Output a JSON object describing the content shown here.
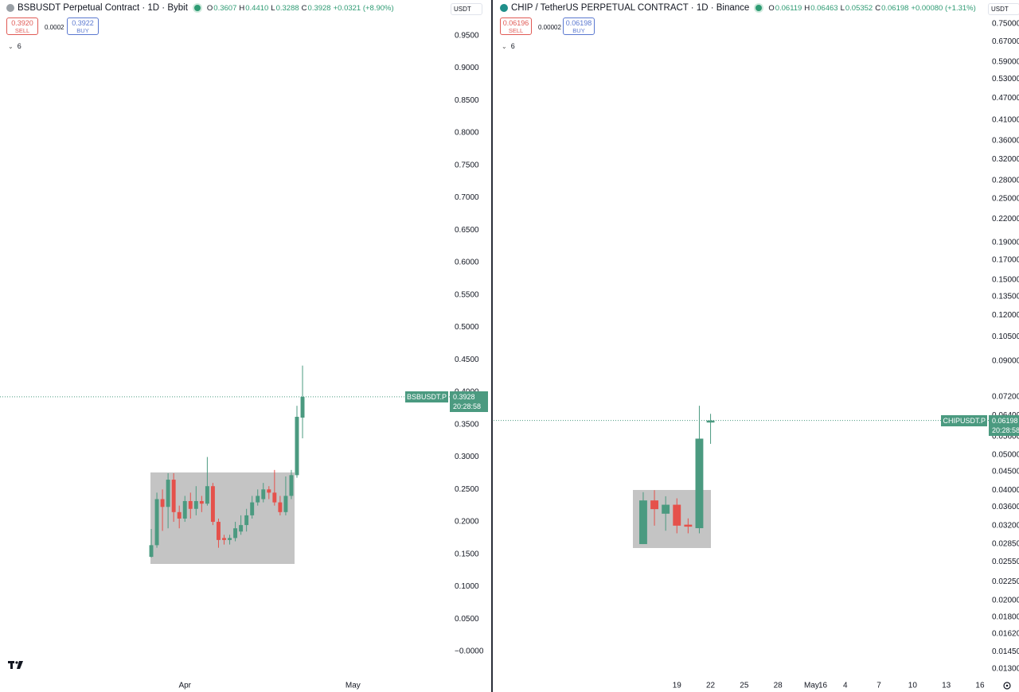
{
  "chart_data": [
    {
      "type": "candlestick",
      "title": "BSBUSDT Perpetual Contract · 1D · Bybit",
      "ohlc_labels": [
        "O",
        "H",
        "L",
        "C"
      ],
      "ohlc_values": [
        "0.3607",
        "0.4410",
        "0.3288",
        "0.3928"
      ],
      "change": "+0.0321 (+8.90%)",
      "sell_price": "0.3920",
      "sell_label": "SELL",
      "spread": "0.0002",
      "buy_price": "0.3922",
      "buy_label": "BUY",
      "indicators": "6",
      "currency": "USDT",
      "symbol_tag": "BSBUSDT.P",
      "last_price": "0.3928",
      "countdown": "20:28:58",
      "up_color": "#4b9a80",
      "down_color": "#e5514b",
      "log_scale": false,
      "xlim": [
        -27,
        53
      ],
      "xticks": [
        {
          "value": 6,
          "label": "Apr"
        },
        {
          "value": 36,
          "label": "May"
        }
      ],
      "ylim": [
        -0.038,
        1.005
      ],
      "yticks": [
        {
          "value": 0.95,
          "label": "0.9500"
        },
        {
          "value": 0.9,
          "label": "0.9000"
        },
        {
          "value": 0.85,
          "label": "0.8500"
        },
        {
          "value": 0.8,
          "label": "0.8000"
        },
        {
          "value": 0.75,
          "label": "0.7500"
        },
        {
          "value": 0.7,
          "label": "0.7000"
        },
        {
          "value": 0.65,
          "label": "0.6500"
        },
        {
          "value": 0.6,
          "label": "0.6000"
        },
        {
          "value": 0.55,
          "label": "0.5500"
        },
        {
          "value": 0.5,
          "label": "0.5000"
        },
        {
          "value": 0.45,
          "label": "0.4500"
        },
        {
          "value": 0.4,
          "label": "0.4000"
        },
        {
          "value": 0.35,
          "label": "0.3500"
        },
        {
          "value": 0.3,
          "label": "0.3000"
        },
        {
          "value": 0.25,
          "label": "0.2500"
        },
        {
          "value": 0.2,
          "label": "0.2000"
        },
        {
          "value": 0.15,
          "label": "0.1500"
        },
        {
          "value": 0.1,
          "label": "0.1000"
        },
        {
          "value": 0.05,
          "label": "0.0500"
        },
        {
          "value": 0,
          "label": "−0.0000"
        }
      ],
      "open": [
        0.146,
        0.164,
        0.235,
        0.223,
        0.265,
        0.215,
        0.205,
        0.232,
        0.22,
        0.232,
        0.228,
        0.255,
        0.2,
        0.175,
        0.172,
        0.175,
        0.185,
        0.195,
        0.21,
        0.23,
        0.235,
        0.25,
        0.245,
        0.23,
        0.215,
        0.24,
        0.272,
        0.3607
      ],
      "high": [
        0.189,
        0.245,
        0.25,
        0.275,
        0.275,
        0.225,
        0.24,
        0.245,
        0.255,
        0.24,
        0.3,
        0.26,
        0.205,
        0.18,
        0.18,
        0.2,
        0.21,
        0.22,
        0.24,
        0.25,
        0.26,
        0.255,
        0.28,
        0.24,
        0.27,
        0.28,
        0.379,
        0.441
      ],
      "low": [
        0.145,
        0.16,
        0.186,
        0.19,
        0.2,
        0.19,
        0.2,
        0.205,
        0.21,
        0.215,
        0.225,
        0.195,
        0.16,
        0.165,
        0.165,
        0.17,
        0.18,
        0.185,
        0.205,
        0.225,
        0.23,
        0.235,
        0.225,
        0.21,
        0.21,
        0.235,
        0.268,
        0.3288
      ],
      "close": [
        0.164,
        0.235,
        0.223,
        0.265,
        0.215,
        0.205,
        0.232,
        0.22,
        0.232,
        0.228,
        0.255,
        0.2,
        0.172,
        0.172,
        0.175,
        0.19,
        0.195,
        0.21,
        0.23,
        0.24,
        0.25,
        0.245,
        0.23,
        0.215,
        0.24,
        0.272,
        0.362,
        0.3928
      ]
    },
    {
      "type": "candlestick",
      "title": "CHIP / TetherUS PERPETUAL CONTRACT · 1D · Binance",
      "ohlc_labels": [
        "O",
        "H",
        "L",
        "C"
      ],
      "ohlc_values": [
        "0.06119",
        "0.06463",
        "0.05352",
        "0.06198"
      ],
      "change": "+0.00080 (+1.31%)",
      "sell_price": "0.06196",
      "sell_label": "SELL",
      "spread": "0.00002",
      "buy_price": "0.06198",
      "buy_label": "BUY",
      "indicators": "6",
      "currency": "USDT",
      "symbol_tag": "CHIPUSDT.P",
      "last_price": "0.06198",
      "countdown": "20:28:58",
      "up_color": "#4b9a80",
      "down_color": "#e5514b",
      "log_scale": true,
      "xlim": [
        -13.33,
        30.64
      ],
      "xticks": [
        16,
        {
          "value": 3,
          "label": "19"
        },
        {
          "value": 6,
          "label": "22"
        },
        {
          "value": 9,
          "label": "25"
        },
        {
          "value": 12,
          "label": "28"
        },
        {
          "value": 15,
          "label": "May"
        },
        {
          "value": 18,
          "label": "4"
        },
        {
          "value": 21,
          "label": "7"
        },
        {
          "value": 24,
          "label": "10"
        },
        {
          "value": 27,
          "label": "13"
        },
        {
          "value": 30,
          "label": "16"
        }
      ],
      "ylim": [
        0.01243,
        0.8714
      ],
      "yticks": [
        {
          "value": 0.75,
          "label": "0.75000"
        },
        {
          "value": 0.67,
          "label": "0.67000"
        },
        {
          "value": 0.59,
          "label": "0.59000"
        },
        {
          "value": 0.53,
          "label": "0.53000"
        },
        {
          "value": 0.47,
          "label": "0.47000"
        },
        {
          "value": 0.41,
          "label": "0.41000"
        },
        {
          "value": 0.36,
          "label": "0.36000"
        },
        {
          "value": 0.32,
          "label": "0.32000"
        },
        {
          "value": 0.28,
          "label": "0.28000"
        },
        {
          "value": 0.25,
          "label": "0.25000"
        },
        {
          "value": 0.22,
          "label": "0.22000"
        },
        {
          "value": 0.19,
          "label": "0.19000"
        },
        {
          "value": 0.17,
          "label": "0.17000"
        },
        {
          "value": 0.15,
          "label": "0.15000"
        },
        {
          "value": 0.135,
          "label": "0.13500"
        },
        {
          "value": 0.12,
          "label": "0.12000"
        },
        {
          "value": 0.105,
          "label": "0.10500"
        },
        {
          "value": 0.09,
          "label": "0.09000"
        },
        {
          "value": 0.072,
          "label": "0.07200"
        },
        {
          "value": 0.064,
          "label": "0.06400"
        },
        {
          "value": 0.056,
          "label": "0.05600"
        },
        {
          "value": 0.05,
          "label": "0.05000"
        },
        {
          "value": 0.045,
          "label": "0.04500"
        },
        {
          "value": 0.04,
          "label": "0.04000"
        },
        {
          "value": 0.036,
          "label": "0.03600"
        },
        {
          "value": 0.032,
          "label": "0.03200"
        },
        {
          "value": 0.0285,
          "label": "0.02850"
        },
        {
          "value": 0.0255,
          "label": "0.02550"
        },
        {
          "value": 0.0225,
          "label": "0.02250"
        },
        {
          "value": 0.02,
          "label": "0.02000"
        },
        {
          "value": 0.018,
          "label": "0.01800"
        },
        {
          "value": 0.0162,
          "label": "0.01620"
        },
        {
          "value": 0.0145,
          "label": "0.01450"
        },
        {
          "value": 0.013,
          "label": "0.01300"
        }
      ],
      "open": [
        0.0285,
        0.0375,
        0.0345,
        0.0365,
        0.0322,
        0.0315,
        0.06119
      ],
      "high": [
        0.0395,
        0.04,
        0.0385,
        0.038,
        0.0335,
        0.068,
        0.06463
      ],
      "low": [
        0.0285,
        0.032,
        0.031,
        0.0305,
        0.0305,
        0.0305,
        0.05352
      ],
      "close": [
        0.0375,
        0.0355,
        0.0365,
        0.032,
        0.0318,
        0.0553,
        0.06198
      ]
    }
  ]
}
